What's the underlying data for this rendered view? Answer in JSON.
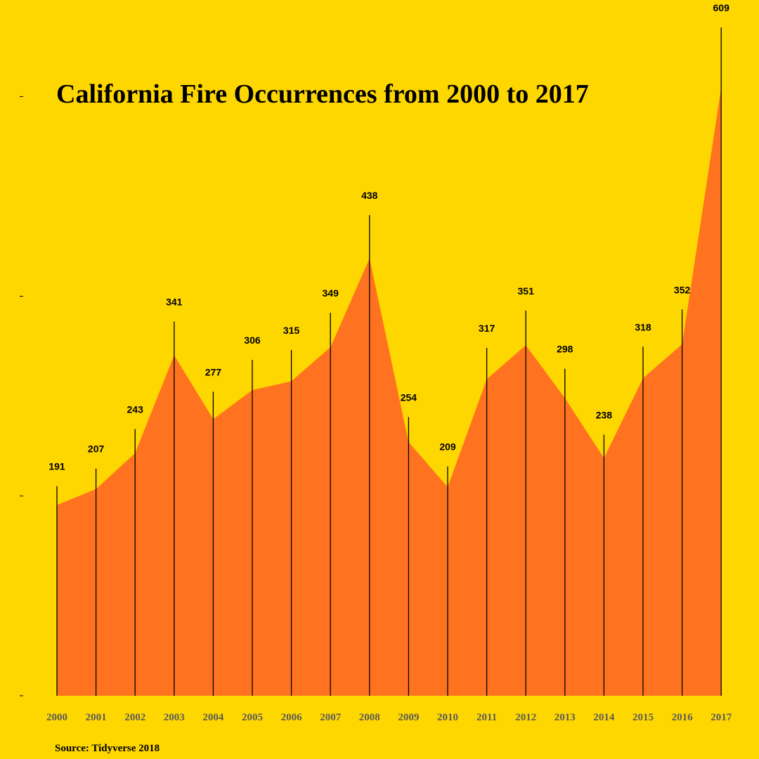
{
  "chart_data": {
    "type": "area",
    "title": "California Fire Occurrences from 2000 to 2017",
    "source": "Source: Tidyverse 2018",
    "xlabel": "",
    "ylabel": "",
    "x": [
      2000,
      2001,
      2002,
      2003,
      2004,
      2005,
      2006,
      2007,
      2008,
      2009,
      2010,
      2011,
      2012,
      2013,
      2014,
      2015,
      2016,
      2017
    ],
    "values": [
      191,
      207,
      243,
      341,
      277,
      306,
      315,
      349,
      438,
      254,
      209,
      317,
      351,
      298,
      238,
      318,
      352,
      609
    ],
    "ylim": [
      0,
      609
    ],
    "colors": {
      "background": "#FFD700",
      "area": "#FF7320",
      "lines": "#000000",
      "tick_labels": "#5a5a5a"
    }
  }
}
